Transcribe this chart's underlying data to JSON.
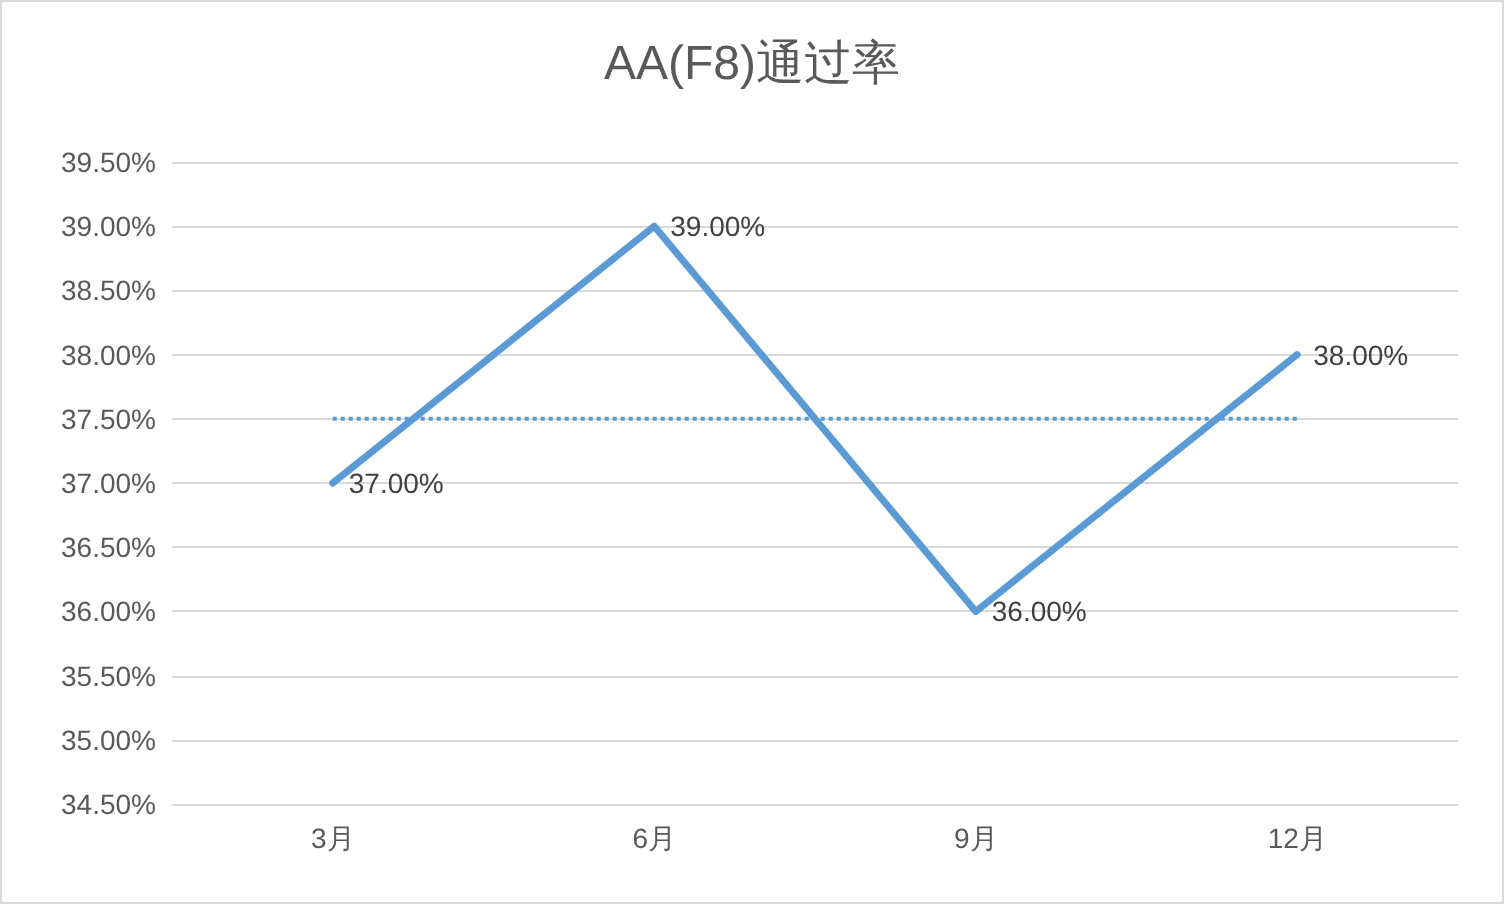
{
  "chart_data": {
    "type": "line",
    "title": "AA(F8)通过率",
    "categories": [
      "3月",
      "6月",
      "9月",
      "12月"
    ],
    "series": [
      {
        "color": "#5b9bd5",
        "values": [
          37,
          39,
          36,
          38
        ],
        "value_labels": [
          "37.00%",
          "39.00%",
          "36.00%",
          "38.00%"
        ],
        "marker": "none",
        "line_style": "solid"
      },
      {
        "color": "#5b9bd5",
        "x": [
          "3月",
          "12月"
        ],
        "values": [
          37.5,
          37.5
        ],
        "marker": "none",
        "line_style": "dotted"
      }
    ],
    "ylim": [
      34.5,
      39.5
    ],
    "yticks": [
      {
        "value": 34.5,
        "label": "34.50%"
      },
      {
        "value": 35,
        "label": "35.00%"
      },
      {
        "value": 35.5,
        "label": "35.50%"
      },
      {
        "value": 36,
        "label": "36.00%"
      },
      {
        "value": 36.5,
        "label": "36.50%"
      },
      {
        "value": 37,
        "label": "37.00%"
      },
      {
        "value": 37.5,
        "label": "37.50%"
      },
      {
        "value": 38,
        "label": "38.00%"
      },
      {
        "value": 38.5,
        "label": "38.50%"
      },
      {
        "value": 39,
        "label": "39.00%"
      },
      {
        "value": 39.5,
        "label": "39.50%"
      }
    ],
    "grid": "y"
  }
}
